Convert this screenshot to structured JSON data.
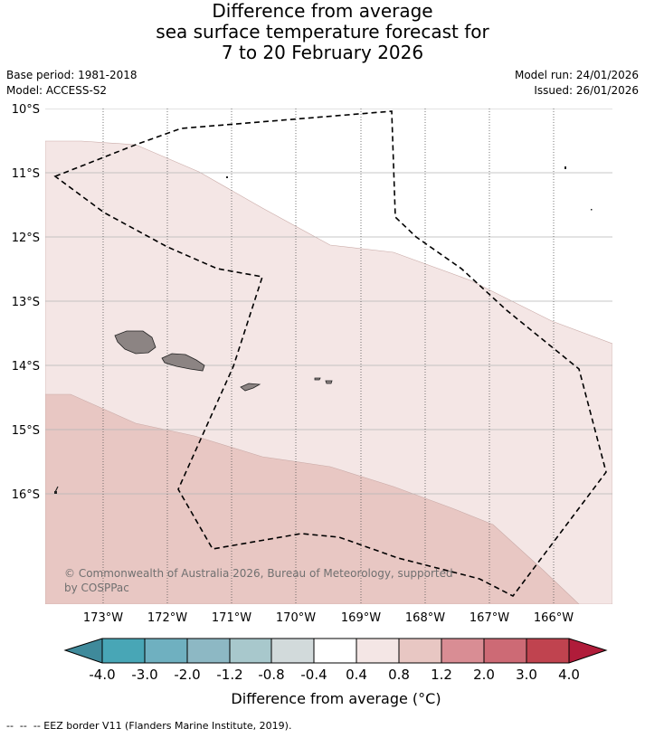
{
  "title": {
    "line1": "Difference from average",
    "line2": "sea surface temperature forecast for",
    "line3": "7 to 20 February 2026"
  },
  "meta": {
    "base_period": "Base period: 1981-2018",
    "model": "Model: ACCESS-S2",
    "model_run": "Model run: 24/01/2026",
    "issued": "Issued: 26/01/2026"
  },
  "map": {
    "lat_labels": [
      "10°S",
      "11°S",
      "12°S",
      "13°S",
      "14°S",
      "15°S",
      "16°S"
    ],
    "lon_labels": [
      "173°W",
      "172°W",
      "171°W",
      "170°W",
      "169°W",
      "168°W",
      "167°W",
      "166°W"
    ],
    "fill_colors": {
      "band_0p4_0p8": "#f4e6e5",
      "band_0p8_1p2": "#e8c7c3",
      "land": "#8c8483"
    },
    "copyright": "© Commonwealth of Australia 2026, Bureau of Meteorology, supported by COSPPac"
  },
  "colorbar": {
    "colors": [
      "#3f8a9b",
      "#48a6b6",
      "#6fb0c0",
      "#8db8c4",
      "#a8c8cc",
      "#d2dadb",
      "#ffffff",
      "#f4e6e5",
      "#e8c7c3",
      "#d98d94",
      "#cd6a75",
      "#c0434f",
      "#b01c3a"
    ],
    "tick_labels": [
      "-4.0",
      "-3.0",
      "-2.0",
      "-1.2",
      "-0.8",
      "-0.4",
      "0.4",
      "0.8",
      "1.2",
      "2.0",
      "3.0",
      "4.0"
    ],
    "label": "Difference from average (°C)"
  },
  "footer": "--  --  -- EEZ border V11 (Flanders Marine Institute, 2019)."
}
